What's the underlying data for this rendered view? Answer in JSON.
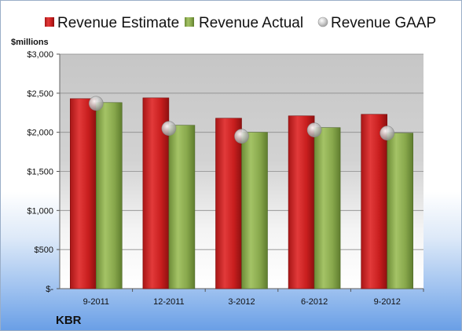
{
  "chart_data": {
    "type": "bar",
    "categories": [
      "9-2011",
      "12-2011",
      "3-2012",
      "6-2012",
      "9-2012"
    ],
    "series": [
      {
        "name": "Revenue Estimate",
        "kind": "bar",
        "color": "#d42a2a",
        "values": [
          2430,
          2440,
          2180,
          2210,
          2230
        ]
      },
      {
        "name": "Revenue Actual",
        "kind": "bar",
        "color": "#8fae52",
        "values": [
          2380,
          2090,
          2000,
          2060,
          1990
        ]
      },
      {
        "name": "Revenue GAAP",
        "kind": "marker",
        "color": "#c8c8c8",
        "values": [
          2370,
          2050,
          1950,
          2030,
          1990
        ]
      }
    ],
    "ylabel": "$millions",
    "ylim": [
      0,
      3000
    ],
    "yticks": [
      {
        "value": 0,
        "label": "$-"
      },
      {
        "value": 500,
        "label": "$500"
      },
      {
        "value": 1000,
        "label": "$1,000"
      },
      {
        "value": 1500,
        "label": "$1,500"
      },
      {
        "value": 2000,
        "label": "$2,000"
      },
      {
        "value": 2500,
        "label": "$2,500"
      },
      {
        "value": 3000,
        "label": "$3,000"
      }
    ],
    "grid": true,
    "legend_position": "top"
  },
  "company_label": "KBR"
}
